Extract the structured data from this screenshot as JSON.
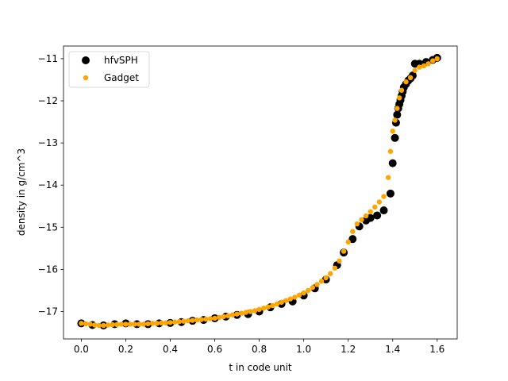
{
  "chart_data": {
    "type": "scatter",
    "xlabel": "t in code unit",
    "ylabel": "density in g/cm^3",
    "xlim": [
      -0.08,
      1.69
    ],
    "ylim": [
      -17.65,
      -10.7
    ],
    "xticks": [
      0.0,
      0.2,
      0.4,
      0.6,
      0.8,
      1.0,
      1.2,
      1.4,
      1.6
    ],
    "xtick_labels": [
      "0.0",
      "0.2",
      "0.4",
      "0.6",
      "0.8",
      "1.0",
      "1.2",
      "1.4",
      "1.6"
    ],
    "yticks": [
      -17,
      -16,
      -15,
      -14,
      -13,
      -12,
      -11
    ],
    "ytick_labels": [
      "−17",
      "−16",
      "−15",
      "−14",
      "−13",
      "−12",
      "−11"
    ],
    "grid": false,
    "legend_position": "top-left",
    "series": [
      {
        "name": "hfvSPH",
        "color": "#000000",
        "marker": "circle-large",
        "x": [
          0.0,
          0.05,
          0.1,
          0.15,
          0.2,
          0.25,
          0.3,
          0.35,
          0.4,
          0.45,
          0.5,
          0.55,
          0.6,
          0.65,
          0.7,
          0.75,
          0.8,
          0.85,
          0.9,
          0.95,
          1.0,
          1.05,
          1.1,
          1.15,
          1.18,
          1.22,
          1.25,
          1.28,
          1.3,
          1.33,
          1.36,
          1.39,
          1.4,
          1.41,
          1.415,
          1.42,
          1.425,
          1.43,
          1.435,
          1.44,
          1.445,
          1.45,
          1.46,
          1.47,
          1.48,
          1.49,
          1.5,
          1.52,
          1.55,
          1.58,
          1.6
        ],
        "y": [
          -17.28,
          -17.32,
          -17.33,
          -17.3,
          -17.28,
          -17.3,
          -17.3,
          -17.28,
          -17.27,
          -17.25,
          -17.22,
          -17.2,
          -17.16,
          -17.12,
          -17.08,
          -17.06,
          -17.0,
          -16.9,
          -16.82,
          -16.76,
          -16.62,
          -16.45,
          -16.24,
          -15.9,
          -15.6,
          -15.28,
          -14.98,
          -14.84,
          -14.78,
          -14.72,
          -14.6,
          -14.2,
          -13.48,
          -12.88,
          -12.52,
          -12.33,
          -12.18,
          -12.08,
          -11.98,
          -11.88,
          -11.78,
          -11.68,
          -11.6,
          -11.52,
          -11.47,
          -11.4,
          -11.12,
          -11.12,
          -11.08,
          -11.03,
          -10.98
        ]
      },
      {
        "name": "Gadget",
        "color": "#ffa500",
        "marker": "circle-small",
        "x": [
          0.0,
          0.02,
          0.04,
          0.06,
          0.08,
          0.1,
          0.12,
          0.14,
          0.16,
          0.18,
          0.2,
          0.22,
          0.24,
          0.26,
          0.28,
          0.3,
          0.32,
          0.34,
          0.36,
          0.38,
          0.4,
          0.42,
          0.44,
          0.46,
          0.48,
          0.5,
          0.52,
          0.54,
          0.56,
          0.58,
          0.6,
          0.62,
          0.64,
          0.66,
          0.68,
          0.7,
          0.72,
          0.74,
          0.76,
          0.78,
          0.8,
          0.82,
          0.84,
          0.86,
          0.88,
          0.9,
          0.92,
          0.94,
          0.96,
          0.98,
          1.0,
          1.02,
          1.04,
          1.06,
          1.08,
          1.1,
          1.12,
          1.14,
          1.16,
          1.18,
          1.2,
          1.22,
          1.24,
          1.26,
          1.28,
          1.3,
          1.32,
          1.34,
          1.36,
          1.38,
          1.39,
          1.4,
          1.41,
          1.42,
          1.43,
          1.44,
          1.46,
          1.48,
          1.5,
          1.52,
          1.54,
          1.56,
          1.58,
          1.6
        ],
        "y": [
          -17.28,
          -17.29,
          -17.3,
          -17.32,
          -17.33,
          -17.33,
          -17.32,
          -17.31,
          -17.31,
          -17.3,
          -17.3,
          -17.3,
          -17.3,
          -17.3,
          -17.3,
          -17.29,
          -17.28,
          -17.28,
          -17.27,
          -17.27,
          -17.26,
          -17.25,
          -17.24,
          -17.23,
          -17.22,
          -17.21,
          -17.2,
          -17.19,
          -17.18,
          -17.17,
          -17.16,
          -17.14,
          -17.12,
          -17.1,
          -17.08,
          -17.06,
          -17.04,
          -17.02,
          -17.0,
          -16.98,
          -16.95,
          -16.92,
          -16.89,
          -16.86,
          -16.82,
          -16.78,
          -16.74,
          -16.7,
          -16.66,
          -16.61,
          -16.56,
          -16.5,
          -16.43,
          -16.36,
          -16.28,
          -16.2,
          -16.1,
          -15.97,
          -15.8,
          -15.57,
          -15.35,
          -15.1,
          -14.92,
          -14.82,
          -14.73,
          -14.63,
          -14.52,
          -14.4,
          -14.27,
          -13.82,
          -13.2,
          -12.72,
          -12.46,
          -12.18,
          -11.93,
          -11.75,
          -11.55,
          -11.45,
          -11.28,
          -11.2,
          -11.17,
          -11.12,
          -11.05,
          -11.0
        ]
      }
    ]
  }
}
